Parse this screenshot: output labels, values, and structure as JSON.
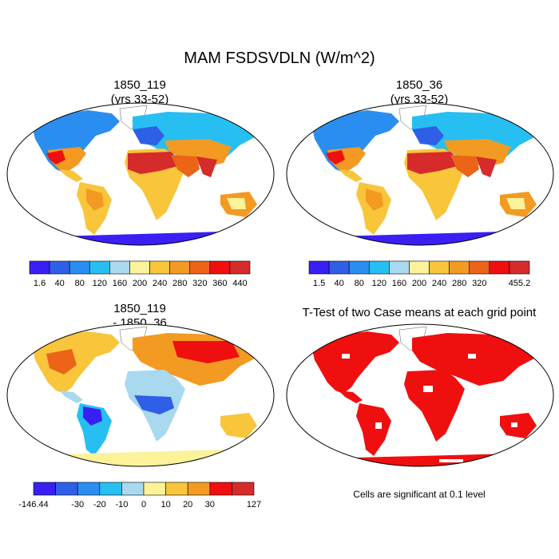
{
  "title": "MAM FSDSVDLN (W/m^2)",
  "panels": {
    "top_left": {
      "title_line1": "1850_119",
      "title_line2": "(yrs 33-52)"
    },
    "top_right": {
      "title_line1": "1850_36",
      "title_line2": "(yrs 33-52)"
    },
    "bottom_left": {
      "title_line1": "1850_119",
      "title_line2": "- 1850_36"
    },
    "bottom_right": {
      "title": "T-Test of two Case means at each grid point",
      "note": "Cells are significant at 0.1 level"
    }
  },
  "colorbars": {
    "top_left": {
      "colors": [
        "#3a1ff5",
        "#2f5fe6",
        "#2a8ef0",
        "#27bff2",
        "#a9d9ee",
        "#fbf29a",
        "#f8c53b",
        "#f39a22",
        "#ec6418",
        "#ef0f0f",
        "#d52b2b"
      ],
      "labels": [
        "1.6",
        "40",
        "80",
        "120",
        "160",
        "200",
        "240",
        "280",
        "320",
        "360",
        "440"
      ]
    },
    "top_right": {
      "colors": [
        "#3a1ff5",
        "#2f5fe6",
        "#2a8ef0",
        "#27bff2",
        "#a9d9ee",
        "#fbf29a",
        "#f8c53b",
        "#f39a22",
        "#ec6418",
        "#ef0f0f",
        "#d52b2b"
      ],
      "labels": [
        "1.5",
        "40",
        "80",
        "120",
        "160",
        "200",
        "240",
        "280",
        "320",
        "",
        "455.2"
      ]
    },
    "bottom_left": {
      "colors": [
        "#3a1ff5",
        "#2f5fe6",
        "#2a8ef0",
        "#27bff2",
        "#a9d9ee",
        "#fbf29a",
        "#f8c53b",
        "#f39a22",
        "#ef0f0f",
        "#d52b2b"
      ],
      "labels": [
        "-146.44",
        "",
        "-30",
        "-20",
        "-10",
        "0",
        "10",
        "20",
        "30",
        "",
        "127"
      ]
    }
  }
}
